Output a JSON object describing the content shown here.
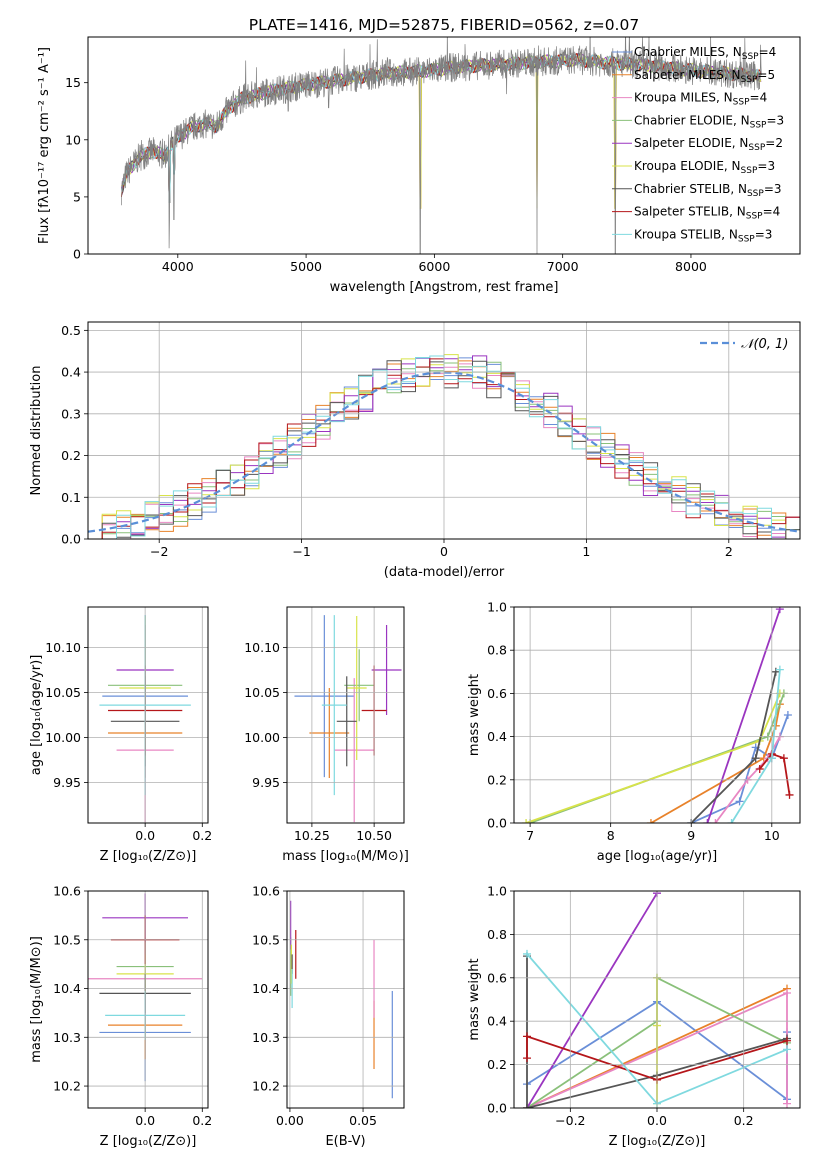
{
  "title": "PLATE=1416, MJD=52875, FIBERID=0562, z=0.07",
  "colors": {
    "chabrier_miles": "#6a8fd8",
    "salpeter_miles": "#e8822a",
    "kroupa_miles": "#e887c3",
    "chabrier_elodie": "#8ac07a",
    "salpeter_elodie": "#9a35c0",
    "kroupa_elodie": "#d8e34a",
    "chabrier_stelib": "#555555",
    "salpeter_stelib": "#b5161a",
    "kroupa_stelib": "#7fd9df",
    "data": "#808080"
  },
  "legend_parts": [
    {
      "key": "chabrier_miles",
      "label": "Chabrier MILES, N",
      "sub": "SSP",
      "suffix": "=4"
    },
    {
      "key": "salpeter_miles",
      "label": "Salpeter MILES, N",
      "sub": "SSP",
      "suffix": "=5"
    },
    {
      "key": "kroupa_miles",
      "label": "Kroupa MILES, N",
      "sub": "SSP",
      "suffix": "=4"
    },
    {
      "key": "chabrier_elodie",
      "label": "Chabrier ELODIE, N",
      "sub": "SSP",
      "suffix": "=3"
    },
    {
      "key": "salpeter_elodie",
      "label": "Salpeter ELODIE, N",
      "sub": "SSP",
      "suffix": "=2"
    },
    {
      "key": "kroupa_elodie",
      "label": "Kroupa ELODIE, N",
      "sub": "SSP",
      "suffix": "=3"
    },
    {
      "key": "chabrier_stelib",
      "label": "Chabrier STELIB, N",
      "sub": "SSP",
      "suffix": "=3"
    },
    {
      "key": "salpeter_stelib",
      "label": "Salpeter STELIB, N",
      "sub": "SSP",
      "suffix": "=4"
    },
    {
      "key": "kroupa_stelib",
      "label": "Kroupa STELIB, N",
      "sub": "SSP",
      "suffix": "=3"
    }
  ],
  "chart_data": [
    {
      "id": "spectrum",
      "type": "line",
      "xlabel": "wavelength [Angstrom, rest frame]",
      "ylabel": "Flux [fλ10⁻¹⁷ erg cm⁻² s⁻¹ A⁻¹]",
      "xlim": [
        3300,
        8850
      ],
      "ylim": [
        0,
        19
      ],
      "xticks": [
        4000,
        5000,
        6000,
        7000,
        8000
      ],
      "yticks": [
        0,
        5,
        10,
        15
      ],
      "grid": false,
      "legend": "right",
      "continuum_x": [
        3550,
        3600,
        3700,
        3800,
        3900,
        3950,
        4000,
        4100,
        4200,
        4300,
        4400,
        4500,
        4700,
        5000,
        5300,
        5600,
        5900,
        6200,
        6500,
        6800,
        7100,
        7400,
        7700,
        8000,
        8300,
        8600
      ],
      "continuum_y": [
        5.2,
        7.0,
        8.5,
        9.0,
        8.6,
        9.6,
        10.2,
        11.0,
        11.4,
        11.2,
        12.8,
        13.6,
        14.2,
        14.8,
        15.3,
        15.8,
        16.0,
        16.4,
        16.6,
        16.8,
        17.0,
        16.7,
        16.5,
        16.1,
        15.8,
        15.5
      ],
      "absorption_lines": [
        {
          "x": 3934,
          "y": 0.5
        },
        {
          "x": 3969,
          "y": 3.0
        },
        {
          "x": 4861,
          "y": 12.5
        },
        {
          "x": 5175,
          "y": 12.8
        },
        {
          "x": 5890,
          "y": 0.0
        },
        {
          "x": 6563,
          "y": 14.0
        },
        {
          "x": 6800,
          "y": 0.0
        },
        {
          "x": 7410,
          "y": 0.0
        }
      ]
    },
    {
      "id": "residuals",
      "type": "histogram",
      "xlabel": "(data-model)/error",
      "ylabel": "Normed distribution",
      "xlim": [
        -2.5,
        2.5
      ],
      "ylim": [
        0,
        0.52
      ],
      "xticks": [
        -2,
        -1,
        0,
        1,
        2
      ],
      "yticks": [
        0.0,
        0.1,
        0.2,
        0.3,
        0.4,
        0.5
      ],
      "grid": true,
      "legend": "top-right",
      "gaussian_label": "𝒩(0, 1)",
      "bin_width": 0.1
    },
    {
      "id": "age_vs_Z",
      "type": "errorbar",
      "xlabel": "Z [log₁₀(Z/Z⊙)]",
      "ylabel": "age  [log₁₀(age/yr)]",
      "xlim": [
        -0.2,
        0.22
      ],
      "ylim": [
        9.905,
        10.145
      ],
      "xticks": [
        0.0,
        0.2
      ],
      "xtick_labels": [
        "0.0",
        "0.2"
      ],
      "yticks": [
        9.95,
        10.0,
        10.05,
        10.1
      ],
      "ytick_labels": [
        "9.95",
        "10.00",
        "10.05",
        "10.10"
      ],
      "grid": true,
      "points": [
        {
          "key": "chabrier_miles",
          "x": 0.0,
          "xerr": 0.15,
          "y": 10.046,
          "yerr": 0.09
        },
        {
          "key": "salpeter_miles",
          "x": 0.0,
          "xerr": 0.13,
          "y": 10.005,
          "yerr": 0.05
        },
        {
          "key": "kroupa_miles",
          "x": 0.0,
          "xerr": 0.1,
          "y": 9.986,
          "yerr": 0.08
        },
        {
          "key": "chabrier_elodie",
          "x": 0.0,
          "xerr": 0.13,
          "y": 10.058,
          "yerr": 0.04
        },
        {
          "key": "salpeter_elodie",
          "x": 0.0,
          "xerr": 0.1,
          "y": 10.075,
          "yerr": 0.05
        },
        {
          "key": "kroupa_elodie",
          "x": 0.0,
          "xerr": 0.09,
          "y": 10.055,
          "yerr": 0.08
        },
        {
          "key": "chabrier_stelib",
          "x": 0.0,
          "xerr": 0.12,
          "y": 10.018,
          "yerr": 0.05
        },
        {
          "key": "salpeter_stelib",
          "x": 0.0,
          "xerr": 0.13,
          "y": 10.03,
          "yerr": 0.05
        },
        {
          "key": "kroupa_stelib",
          "x": 0.0,
          "xerr": 0.16,
          "y": 10.036,
          "yerr": 0.1
        }
      ]
    },
    {
      "id": "age_vs_mass",
      "type": "errorbar",
      "xlabel": "mass [log₁₀(M/M⊙)]",
      "ylabel": "",
      "xlim": [
        10.15,
        10.62
      ],
      "ylim": [
        9.905,
        10.145
      ],
      "xticks": [
        10.25,
        10.5
      ],
      "xtick_labels": [
        "10.25",
        "10.50"
      ],
      "yticks": [
        9.95,
        10.0,
        10.05,
        10.1
      ],
      "ytick_labels": [
        "9.95",
        "10.00",
        "10.05",
        "10.10"
      ],
      "grid": true,
      "points": [
        {
          "key": "chabrier_miles",
          "x": 10.3,
          "xerr": 0.12,
          "y": 10.046,
          "yerr": 0.09
        },
        {
          "key": "salpeter_miles",
          "x": 10.32,
          "xerr": 0.08,
          "y": 10.005,
          "yerr": 0.05
        },
        {
          "key": "kroupa_miles",
          "x": 10.42,
          "xerr": 0.08,
          "y": 9.986,
          "yerr": 0.08
        },
        {
          "key": "chabrier_elodie",
          "x": 10.44,
          "xerr": 0.06,
          "y": 10.058,
          "yerr": 0.04
        },
        {
          "key": "salpeter_elodie",
          "x": 10.55,
          "xerr": 0.06,
          "y": 10.075,
          "yerr": 0.05
        },
        {
          "key": "kroupa_elodie",
          "x": 10.43,
          "xerr": 0.04,
          "y": 10.055,
          "yerr": 0.08
        },
        {
          "key": "chabrier_stelib",
          "x": 10.39,
          "xerr": 0.04,
          "y": 10.018,
          "yerr": 0.05
        },
        {
          "key": "salpeter_stelib",
          "x": 10.5,
          "xerr": 0.05,
          "y": 10.03,
          "yerr": 0.05
        },
        {
          "key": "kroupa_stelib",
          "x": 10.34,
          "xerr": 0.05,
          "y": 10.036,
          "yerr": 0.1
        }
      ]
    },
    {
      "id": "weight_vs_age",
      "type": "line",
      "xlabel": "age  [log₁₀(age/yr)]",
      "ylabel": "mass weight",
      "xlim": [
        6.8,
        10.35
      ],
      "ylim": [
        0,
        1.0
      ],
      "xticks": [
        7,
        8,
        9,
        10
      ],
      "xtick_labels": [
        "7",
        "8",
        "9",
        "10"
      ],
      "yticks": [
        0.0,
        0.2,
        0.4,
        0.6,
        0.8,
        1.0
      ],
      "ytick_labels": [
        "0.0",
        "0.2",
        "0.4",
        "0.6",
        "0.8",
        "1.0"
      ],
      "grid": true,
      "series": [
        {
          "key": "chabrier_miles",
          "x": [
            9.0,
            9.6,
            9.8,
            10.0,
            10.2
          ],
          "y": [
            0.0,
            0.1,
            0.35,
            0.3,
            0.5
          ]
        },
        {
          "key": "salpeter_miles",
          "x": [
            8.5,
            9.9,
            10.05,
            10.1
          ],
          "y": [
            0.0,
            0.3,
            0.45,
            0.55
          ]
        },
        {
          "key": "kroupa_miles",
          "x": [
            9.3,
            9.7,
            9.95,
            10.1
          ],
          "y": [
            0.0,
            0.2,
            0.3,
            0.4
          ]
        },
        {
          "key": "chabrier_elodie",
          "x": [
            7.0,
            9.95,
            10.15
          ],
          "y": [
            0.0,
            0.4,
            0.6
          ]
        },
        {
          "key": "salpeter_elodie",
          "x": [
            9.2,
            10.1
          ],
          "y": [
            0.0,
            0.99
          ]
        },
        {
          "key": "kroupa_elodie",
          "x": [
            6.95,
            9.85,
            10.1
          ],
          "y": [
            0.0,
            0.38,
            0.6
          ]
        },
        {
          "key": "chabrier_stelib",
          "x": [
            9.0,
            9.8,
            10.05
          ],
          "y": [
            0.0,
            0.3,
            0.7
          ]
        },
        {
          "key": "salpeter_stelib",
          "x": [
            9.85,
            10.0,
            10.15,
            10.22
          ],
          "y": [
            0.25,
            0.32,
            0.3,
            0.13
          ]
        },
        {
          "key": "kroupa_stelib",
          "x": [
            9.5,
            10.0,
            10.1
          ],
          "y": [
            0.0,
            0.3,
            0.71
          ]
        }
      ]
    },
    {
      "id": "mass_vs_Z",
      "type": "errorbar",
      "xlabel": "Z [log₁₀(Z/Z⊙)]",
      "ylabel": "mass [log₁₀(M/M⊙)]",
      "xlim": [
        -0.2,
        0.22
      ],
      "ylim": [
        10.155,
        10.6
      ],
      "xticks": [
        0.0,
        0.2
      ],
      "xtick_labels": [
        "0.0",
        "0.2"
      ],
      "yticks": [
        10.2,
        10.3,
        10.4,
        10.5,
        10.6
      ],
      "ytick_labels": [
        "10.2",
        "10.3",
        "10.4",
        "10.5",
        "10.6"
      ],
      "grid": true,
      "points": [
        {
          "key": "chabrier_miles",
          "x": 0.0,
          "xerr": 0.16,
          "y": 10.31,
          "yerr": 0.1
        },
        {
          "key": "salpeter_miles",
          "x": 0.0,
          "xerr": 0.13,
          "y": 10.325,
          "yerr": 0.07
        },
        {
          "key": "kroupa_miles",
          "x": 0.0,
          "xerr": 0.2,
          "y": 10.42,
          "yerr": 0.08
        },
        {
          "key": "chabrier_elodie",
          "x": 0.0,
          "xerr": 0.1,
          "y": 10.445,
          "yerr": 0.06
        },
        {
          "key": "salpeter_elodie",
          "x": 0.0,
          "xerr": 0.15,
          "y": 10.545,
          "yerr": 0.05
        },
        {
          "key": "kroupa_elodie",
          "x": 0.0,
          "xerr": 0.1,
          "y": 10.43,
          "yerr": 0.04
        },
        {
          "key": "chabrier_stelib",
          "x": 0.0,
          "xerr": 0.16,
          "y": 10.39,
          "yerr": 0.04
        },
        {
          "key": "salpeter_stelib",
          "x": 0.0,
          "xerr": 0.12,
          "y": 10.5,
          "yerr": 0.05
        },
        {
          "key": "kroupa_stelib",
          "x": 0.0,
          "xerr": 0.14,
          "y": 10.345,
          "yerr": 0.05
        }
      ]
    },
    {
      "id": "mass_vs_ebv",
      "type": "errorbar",
      "xlabel": "E(B-V)",
      "ylabel": "",
      "xlim": [
        -0.002,
        0.078
      ],
      "ylim": [
        10.155,
        10.6
      ],
      "xticks": [
        0.0,
        0.05
      ],
      "xtick_labels": [
        "0.00",
        "0.05"
      ],
      "yticks": [
        10.2,
        10.3,
        10.4,
        10.5,
        10.6
      ],
      "ytick_labels": [
        "10.2",
        "10.3",
        "10.4",
        "10.5",
        "10.6"
      ],
      "grid": true,
      "points": [
        {
          "key": "chabrier_miles",
          "x": 0.07,
          "xerr": 0.0,
          "y": 10.285,
          "yerr": 0.11
        },
        {
          "key": "salpeter_miles",
          "x": 0.0575,
          "xerr": 0.0,
          "y": 10.305,
          "yerr": 0.07
        },
        {
          "key": "kroupa_miles",
          "x": 0.0575,
          "xerr": 0.0,
          "y": 10.42,
          "yerr": 0.08
        },
        {
          "key": "chabrier_elodie",
          "x": 0.0005,
          "xerr": 0.0,
          "y": 10.445,
          "yerr": 0.06
        },
        {
          "key": "salpeter_elodie",
          "x": 0.0005,
          "xerr": 0.0,
          "y": 10.53,
          "yerr": 0.05
        },
        {
          "key": "kroupa_elodie",
          "x": 0.001,
          "xerr": 0.0,
          "y": 10.45,
          "yerr": 0.04
        },
        {
          "key": "chabrier_stelib",
          "x": 0.0015,
          "xerr": 0.0,
          "y": 10.45,
          "yerr": 0.02
        },
        {
          "key": "salpeter_stelib",
          "x": 0.004,
          "xerr": 0.0,
          "y": 10.47,
          "yerr": 0.05
        },
        {
          "key": "kroupa_stelib",
          "x": 0.0015,
          "xerr": 0.0,
          "y": 10.4,
          "yerr": 0.04
        }
      ]
    },
    {
      "id": "weight_vs_Z",
      "type": "line",
      "xlabel": "Z [log₁₀(Z/Z⊙)]",
      "ylabel": "mass weight",
      "xlim": [
        -0.33,
        0.33
      ],
      "ylim": [
        0,
        1.0
      ],
      "xticks": [
        -0.2,
        0.0,
        0.2
      ],
      "xtick_labels": [
        "−0.2",
        "0.0",
        "0.2"
      ],
      "yticks": [
        0.0,
        0.2,
        0.4,
        0.6,
        0.8,
        1.0
      ],
      "ytick_labels": [
        "0.0",
        "0.2",
        "0.4",
        "0.6",
        "0.8",
        "1.0"
      ],
      "grid": true,
      "series": [
        {
          "key": "chabrier_miles",
          "x": [
            -0.3,
            0.0,
            0.3,
            0.3
          ],
          "y": [
            0.11,
            0.49,
            0.04,
            0.35
          ]
        },
        {
          "key": "salpeter_miles",
          "x": [
            -0.3,
            0.3
          ],
          "y": [
            0.0,
            0.55
          ]
        },
        {
          "key": "kroupa_miles",
          "x": [
            -0.3,
            0.3,
            0.3
          ],
          "y": [
            0.0,
            0.53,
            0.02
          ]
        },
        {
          "key": "chabrier_elodie",
          "x": [
            -0.3,
            0.0,
            0.0,
            0.3
          ],
          "y": [
            0.0,
            0.4,
            0.6,
            0.3
          ]
        },
        {
          "key": "salpeter_elodie",
          "x": [
            -0.3,
            0.0
          ],
          "y": [
            0.0,
            0.99
          ]
        },
        {
          "key": "kroupa_elodie",
          "x": [
            0.0,
            0.0,
            0.0
          ],
          "y": [
            0.02,
            0.38,
            0.6
          ]
        },
        {
          "key": "chabrier_stelib",
          "x": [
            -0.3,
            -0.3,
            0.0,
            0.3
          ],
          "y": [
            0.7,
            0.0,
            0.15,
            0.32
          ]
        },
        {
          "key": "salpeter_stelib",
          "x": [
            -0.3,
            -0.3,
            0.0,
            0.3
          ],
          "y": [
            0.23,
            0.33,
            0.13,
            0.31
          ]
        },
        {
          "key": "kroupa_stelib",
          "x": [
            -0.3,
            0.0,
            0.3
          ],
          "y": [
            0.71,
            0.02,
            0.27
          ]
        }
      ]
    }
  ]
}
